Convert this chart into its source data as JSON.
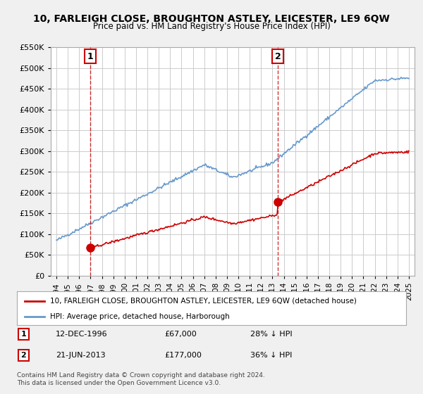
{
  "title": "10, FARLEIGH CLOSE, BROUGHTON ASTLEY, LEICESTER, LE9 6QW",
  "subtitle": "Price paid vs. HM Land Registry's House Price Index (HPI)",
  "red_line_label": "10, FARLEIGH CLOSE, BROUGHTON ASTLEY, LEICESTER, LE9 6QW (detached house)",
  "blue_line_label": "HPI: Average price, detached house, Harborough",
  "annotation1_label": "1",
  "annotation1_date": "12-DEC-1996",
  "annotation1_price": "£67,000",
  "annotation1_hpi": "28% ↓ HPI",
  "annotation1_year": 1996.95,
  "annotation1_value": 67000,
  "annotation2_label": "2",
  "annotation2_date": "21-JUN-2013",
  "annotation2_price": "£177,000",
  "annotation2_hpi": "36% ↓ HPI",
  "annotation2_year": 2013.47,
  "annotation2_value": 177000,
  "ylim": [
    0,
    550000
  ],
  "xlim_start": 1993.5,
  "xlim_end": 2025.5,
  "ylabel_ticks": [
    0,
    50000,
    100000,
    150000,
    200000,
    250000,
    300000,
    350000,
    400000,
    450000,
    500000,
    550000
  ],
  "xticks": [
    1994,
    1995,
    1996,
    1997,
    1998,
    1999,
    2000,
    2001,
    2002,
    2003,
    2004,
    2005,
    2006,
    2007,
    2008,
    2009,
    2010,
    2011,
    2012,
    2013,
    2014,
    2015,
    2016,
    2017,
    2018,
    2019,
    2020,
    2021,
    2022,
    2023,
    2024,
    2025
  ],
  "background_color": "#f0f0f0",
  "plot_background": "#ffffff",
  "red_color": "#cc0000",
  "blue_color": "#6699cc",
  "grid_color": "#cccccc",
  "footnote": "Contains HM Land Registry data © Crown copyright and database right 2024.\nThis data is licensed under the Open Government Licence v3.0."
}
